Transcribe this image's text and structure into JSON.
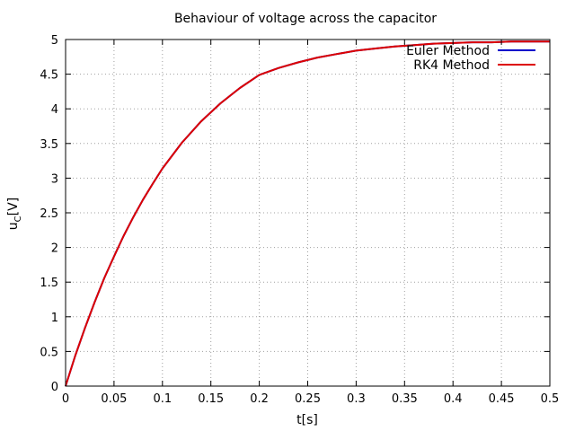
{
  "chart_data": {
    "type": "line",
    "title": "Behaviour of voltage across the capacitor",
    "xlabel": "t[s]",
    "ylabel_main": "u",
    "ylabel_sub": "C",
    "ylabel_unit": "[V]",
    "xlim": [
      0,
      0.5
    ],
    "ylim": [
      0,
      5
    ],
    "grid": true,
    "legend_position": "top-right",
    "x_ticks": [
      "0",
      "0.05",
      "0.1",
      "0.15",
      "0.2",
      "0.25",
      "0.3",
      "0.35",
      "0.4",
      "0.45",
      "0.5"
    ],
    "y_ticks": [
      "0",
      "0.5",
      "1",
      "1.5",
      "2",
      "2.5",
      "3",
      "3.5",
      "4",
      "4.5",
      "5"
    ],
    "x": [
      0,
      0.01,
      0.02,
      0.03,
      0.04,
      0.05,
      0.06,
      0.07,
      0.08,
      0.09,
      0.1,
      0.12,
      0.14,
      0.16,
      0.18,
      0.2,
      0.22,
      0.24,
      0.26,
      0.28,
      0.3,
      0.32,
      0.34,
      0.36,
      0.38,
      0.4,
      0.42,
      0.44,
      0.46,
      0.48,
      0.5
    ],
    "series": [
      {
        "name": "Euler Method",
        "color": "#0000cc",
        "values": [
          0,
          0.44,
          0.84,
          1.21,
          1.56,
          1.87,
          2.17,
          2.44,
          2.69,
          2.92,
          3.14,
          3.51,
          3.82,
          4.08,
          4.3,
          4.49,
          4.59,
          4.67,
          4.74,
          4.79,
          4.84,
          4.87,
          4.9,
          4.92,
          4.94,
          4.95,
          4.96,
          4.96,
          4.97,
          4.97,
          4.97
        ]
      },
      {
        "name": "RK4 Method",
        "color": "#dd0000",
        "values": [
          0,
          0.44,
          0.84,
          1.21,
          1.56,
          1.87,
          2.17,
          2.44,
          2.69,
          2.92,
          3.14,
          3.51,
          3.82,
          4.08,
          4.3,
          4.49,
          4.59,
          4.67,
          4.74,
          4.79,
          4.84,
          4.87,
          4.9,
          4.92,
          4.94,
          4.95,
          4.96,
          4.96,
          4.97,
          4.97,
          4.97
        ]
      }
    ]
  }
}
